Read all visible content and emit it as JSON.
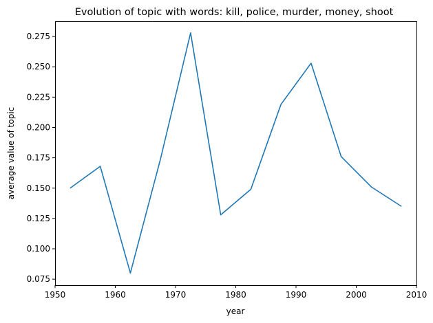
{
  "chart_data": {
    "type": "line",
    "title": "Evolution of topic with words: kill, police, murder, money, shoot",
    "xlabel": "year",
    "ylabel": "average value of topic",
    "xlim": [
      1950,
      2010
    ],
    "ylim": [
      0.07,
      0.2875
    ],
    "xticks": [
      1950,
      1960,
      1970,
      1980,
      1990,
      2000,
      2010
    ],
    "yticks": [
      0.075,
      0.1,
      0.125,
      0.15,
      0.175,
      0.2,
      0.225,
      0.25,
      0.275
    ],
    "ytick_labels": [
      "0.075",
      "0.100",
      "0.125",
      "0.150",
      "0.175",
      "0.200",
      "0.225",
      "0.250",
      "0.275"
    ],
    "grid": false,
    "series": [
      {
        "name": "topic",
        "color": "#1f77b4",
        "x": [
          1952.5,
          1957.5,
          1962.5,
          1967.5,
          1972.5,
          1977.5,
          1982.5,
          1987.5,
          1992.5,
          1997.5,
          2002.5,
          2007.5
        ],
        "values": [
          0.15,
          0.168,
          0.08,
          0.174,
          0.278,
          0.128,
          0.149,
          0.219,
          0.253,
          0.176,
          0.151,
          0.135
        ]
      }
    ]
  }
}
